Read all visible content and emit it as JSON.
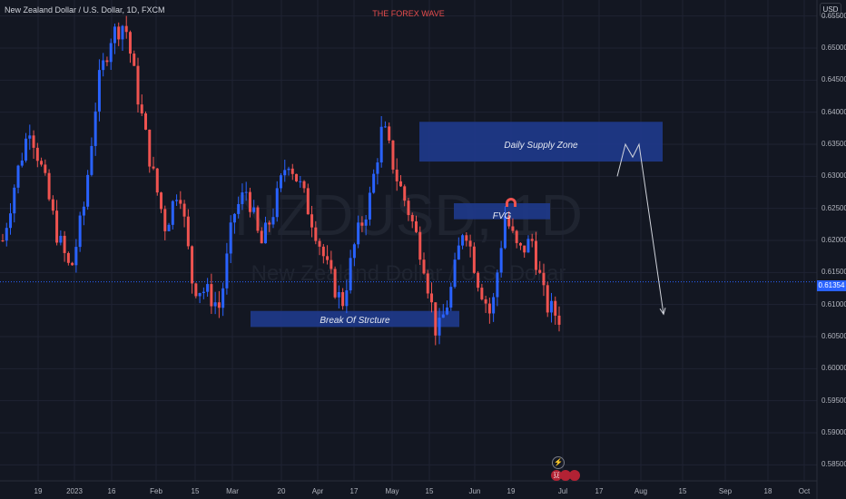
{
  "header": {
    "symbol_title": "New Zealand Dollar / U.S. Dollar, 1D, FXCM",
    "brand": "THE FOREX WAVE",
    "currency": "USD"
  },
  "watermark": {
    "ticker": "NZDUSD, 1D",
    "name": "New Zealand Dollar / U.S. Dollar"
  },
  "annotations": {
    "supply_zone": "Daily Supply Zone",
    "fvg": "FVG",
    "bos": "Break Of Strcture"
  },
  "last_price": "0.61354",
  "colors": {
    "background": "#131722",
    "up": "#2962ff",
    "down": "#ef5350",
    "zone": "#1e3a8a",
    "grid": "#1f2333",
    "accent_text": "#e84d4d"
  },
  "chart_data": {
    "type": "candlestick",
    "title": "New Zealand Dollar / U.S. Dollar, 1D, FXCM",
    "ylim": [
      0.5825,
      0.6575
    ],
    "y_ticks": [
      "0.65500",
      "0.65000",
      "0.64500",
      "0.64000",
      "0.63500",
      "0.63000",
      "0.62500",
      "0.62000",
      "0.61500",
      "0.61000",
      "0.60500",
      "0.60000",
      "0.59500",
      "0.59000",
      "0.58500"
    ],
    "x_ticks": [
      "19",
      "2023",
      "16",
      "Feb",
      "15",
      "Mar",
      "20",
      "Apr",
      "17",
      "May",
      "15",
      "Jun",
      "19",
      "Jul",
      "17",
      "Aug",
      "15",
      "Sep",
      "18",
      "Oct"
    ],
    "zones": [
      {
        "label": "Daily Supply Zone",
        "top": 0.6385,
        "bottom": 0.6323
      },
      {
        "label": "FVG",
        "top": 0.6258,
        "bottom": 0.6233
      },
      {
        "label": "Break Of Strcture",
        "top": 0.609,
        "bottom": 0.6065
      }
    ],
    "current_price": 0.61354,
    "close_path": [
      0.62,
      0.63,
      0.638,
      0.63,
      0.621,
      0.615,
      0.6255,
      0.644,
      0.652,
      0.654,
      0.642,
      0.631,
      0.622,
      0.629,
      0.613,
      0.612,
      0.6095,
      0.624,
      0.628,
      0.619,
      0.625,
      0.633,
      0.628,
      0.622,
      0.615,
      0.61,
      0.62,
      0.626,
      0.638,
      0.63,
      0.624,
      0.617,
      0.605,
      0.612,
      0.623,
      0.614,
      0.608,
      0.624,
      0.618,
      0.62,
      0.61,
      0.608
    ],
    "projection": [
      0.63,
      0.635,
      0.633,
      0.635,
      0.6085
    ]
  }
}
